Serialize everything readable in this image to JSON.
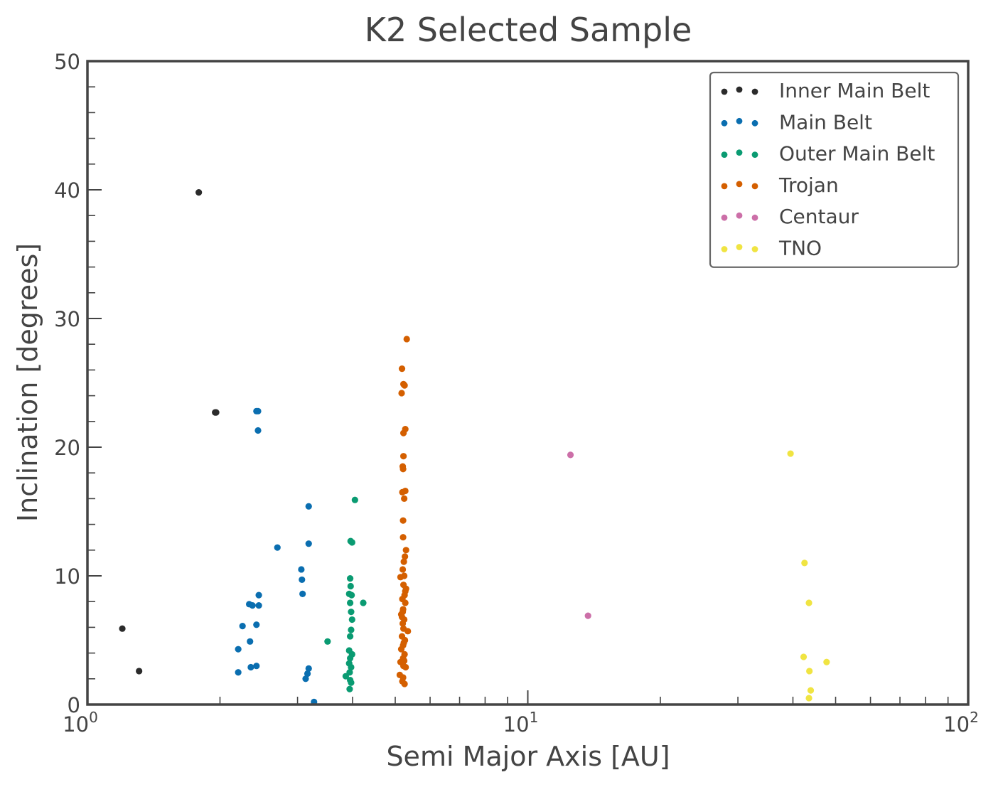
{
  "chart_data": {
    "type": "scatter",
    "title": "K2 Selected Sample",
    "xlabel": "Semi Major Axis [AU]",
    "ylabel": "Inclination [degrees]",
    "xscale": "log",
    "xlim": [
      1,
      100
    ],
    "ylim": [
      0,
      50
    ],
    "x_ticks": [
      {
        "base": "10",
        "exp": "0"
      },
      {
        "base": "10",
        "exp": "1"
      },
      {
        "base": "10",
        "exp": "2"
      }
    ],
    "y_ticks": [
      "0",
      "10",
      "20",
      "30",
      "40",
      "50"
    ],
    "grid": false,
    "legend_position": "top-right",
    "series": [
      {
        "name": "Inner Main Belt",
        "color": "#2b2b2b",
        "points": [
          [
            1.2,
            5.9
          ],
          [
            1.31,
            2.6
          ],
          [
            1.79,
            39.8
          ],
          [
            1.95,
            22.7
          ],
          [
            1.96,
            22.7
          ]
        ]
      },
      {
        "name": "Main Belt",
        "color": "#0a6eb0",
        "points": [
          [
            2.42,
            22.8
          ],
          [
            2.44,
            22.8
          ],
          [
            2.44,
            21.3
          ],
          [
            2.42,
            6.2
          ],
          [
            2.45,
            8.5
          ],
          [
            2.45,
            7.7
          ],
          [
            2.33,
            7.8
          ],
          [
            2.37,
            7.7
          ],
          [
            2.25,
            6.1
          ],
          [
            2.2,
            4.3
          ],
          [
            2.34,
            4.9
          ],
          [
            2.35,
            2.9
          ],
          [
            2.42,
            3.0
          ],
          [
            2.2,
            2.5
          ],
          [
            2.7,
            12.2
          ],
          [
            3.06,
            10.5
          ],
          [
            3.07,
            9.7
          ],
          [
            3.08,
            8.6
          ],
          [
            3.18,
            15.4
          ],
          [
            3.18,
            12.5
          ],
          [
            3.13,
            2.0
          ],
          [
            3.16,
            2.4
          ],
          [
            3.18,
            2.8
          ],
          [
            3.27,
            0.2
          ]
        ]
      },
      {
        "name": "Outer Main Belt",
        "color": "#0a9b72",
        "points": [
          [
            3.96,
            12.7
          ],
          [
            4.05,
            15.9
          ],
          [
            3.99,
            12.6
          ],
          [
            3.95,
            9.8
          ],
          [
            3.96,
            9.2
          ],
          [
            3.98,
            8.5
          ],
          [
            3.93,
            8.6
          ],
          [
            3.95,
            7.9
          ],
          [
            3.97,
            7.2
          ],
          [
            3.99,
            6.6
          ],
          [
            4.23,
            7.9
          ],
          [
            3.97,
            5.8
          ],
          [
            3.95,
            5.3
          ],
          [
            3.51,
            4.9
          ],
          [
            3.93,
            4.2
          ],
          [
            3.99,
            3.9
          ],
          [
            3.95,
            3.6
          ],
          [
            3.93,
            3.2
          ],
          [
            3.97,
            2.9
          ],
          [
            3.94,
            2.5
          ],
          [
            3.86,
            2.2
          ],
          [
            3.95,
            1.9
          ],
          [
            3.97,
            1.7
          ],
          [
            3.94,
            1.2
          ]
        ]
      },
      {
        "name": "Trojan",
        "color": "#d45f00",
        "points": [
          [
            5.31,
            28.4
          ],
          [
            5.18,
            26.1
          ],
          [
            5.22,
            24.9
          ],
          [
            5.25,
            24.8
          ],
          [
            5.17,
            24.2
          ],
          [
            5.27,
            21.4
          ],
          [
            5.22,
            21.1
          ],
          [
            5.22,
            19.3
          ],
          [
            5.2,
            18.5
          ],
          [
            5.21,
            18.3
          ],
          [
            5.19,
            16.5
          ],
          [
            5.27,
            16.6
          ],
          [
            5.24,
            16.0
          ],
          [
            5.21,
            14.3
          ],
          [
            5.21,
            13.0
          ],
          [
            5.29,
            12.0
          ],
          [
            5.26,
            11.5
          ],
          [
            5.23,
            11.1
          ],
          [
            5.2,
            10.5
          ],
          [
            5.24,
            10.0
          ],
          [
            5.14,
            9.9
          ],
          [
            5.29,
            9.0
          ],
          [
            5.25,
            8.5
          ],
          [
            5.19,
            8.2
          ],
          [
            5.27,
            7.9
          ],
          [
            5.21,
            7.4
          ],
          [
            5.16,
            7.0
          ],
          [
            5.24,
            6.6
          ],
          [
            5.2,
            6.3
          ],
          [
            5.22,
            5.9
          ],
          [
            5.34,
            5.7
          ],
          [
            5.18,
            5.3
          ],
          [
            5.26,
            5.0
          ],
          [
            5.21,
            4.6
          ],
          [
            5.16,
            4.3
          ],
          [
            5.25,
            3.9
          ],
          [
            5.21,
            3.6
          ],
          [
            5.14,
            3.3
          ],
          [
            5.22,
            3.0
          ],
          [
            5.28,
            2.9
          ],
          [
            5.12,
            2.3
          ],
          [
            5.21,
            2.1
          ],
          [
            5.19,
            1.8
          ],
          [
            5.25,
            1.6
          ],
          [
            5.2,
            7.2
          ],
          [
            5.23,
            4.8
          ],
          [
            5.27,
            8.8
          ],
          [
            5.18,
            6.8
          ],
          [
            5.24,
            3.4
          ],
          [
            5.22,
            9.3
          ]
        ]
      },
      {
        "name": "Centaur",
        "color": "#cc6fa8",
        "points": [
          [
            12.5,
            19.4
          ],
          [
            13.7,
            6.9
          ]
        ]
      },
      {
        "name": "TNO",
        "color": "#f0e442",
        "points": [
          [
            39.5,
            19.5
          ],
          [
            42.5,
            11.0
          ],
          [
            43.5,
            7.9
          ],
          [
            42.3,
            3.7
          ],
          [
            43.6,
            2.6
          ],
          [
            47.7,
            3.3
          ],
          [
            43.9,
            1.1
          ],
          [
            43.5,
            0.5
          ]
        ]
      }
    ]
  }
}
